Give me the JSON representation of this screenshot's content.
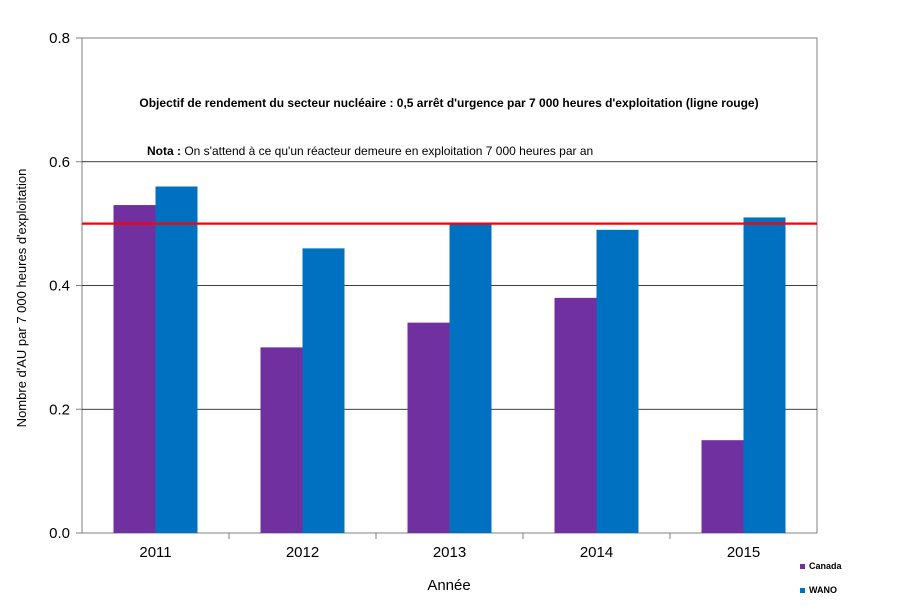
{
  "chart_data": {
    "type": "bar",
    "categories": [
      "2011",
      "2012",
      "2013",
      "2014",
      "2015"
    ],
    "series": [
      {
        "name": "Canada",
        "values": [
          0.53,
          0.3,
          0.34,
          0.38,
          0.15
        ],
        "color": "#7030A0"
      },
      {
        "name": "WANO",
        "values": [
          0.56,
          0.46,
          0.5,
          0.49,
          0.51
        ],
        "color": "#0070C0"
      }
    ],
    "xlabel": "Année",
    "ylabel": "Nombre d'AU par 7 000 heures d'exploitation",
    "ylim": [
      0,
      0.8
    ],
    "yticks": [
      "0.0",
      "0.2",
      "0.4",
      "0.6",
      "0.8"
    ],
    "grid": true,
    "legend_position": "bottom-right",
    "target_line": {
      "value": 0.5,
      "color": "#FF0000"
    },
    "annotations": {
      "objective": "Objectif de rendement du secteur nucléaire : 0,5 arrêt d'urgence par 7 000 heures d'exploitation (ligne rouge)",
      "note_label": "Nota :",
      "note_text": " On s'attend à ce qu'un réacteur demeure en exploitation 7 000 heures par an"
    }
  }
}
